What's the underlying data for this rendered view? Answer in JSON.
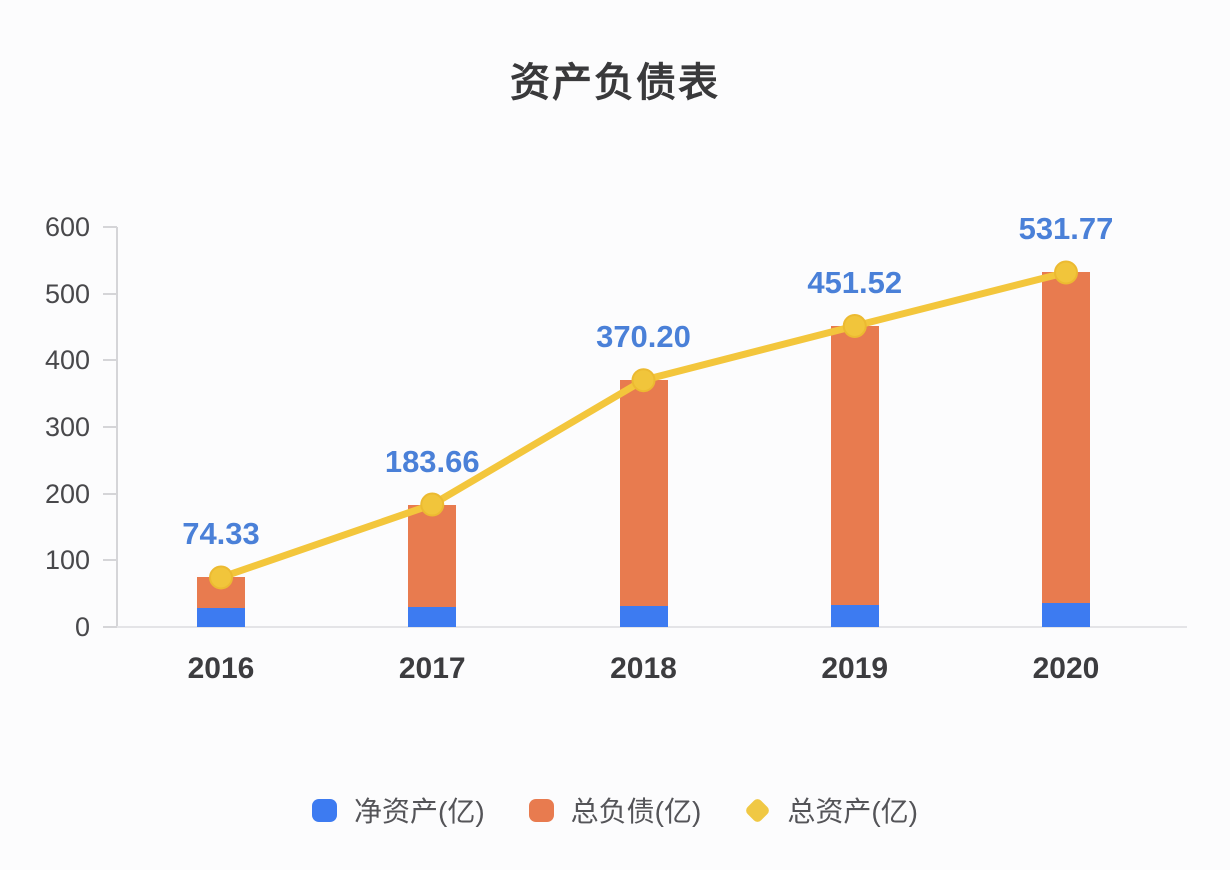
{
  "title": "资产负债表",
  "chart_data": {
    "type": "bar+line",
    "categories": [
      "2016",
      "2017",
      "2018",
      "2019",
      "2020"
    ],
    "series": [
      {
        "name": "净资产(亿)",
        "type": "bar",
        "stack": "total",
        "color": "#3d7bf1",
        "values": [
          29,
          30,
          32,
          33,
          36
        ]
      },
      {
        "name": "总负债(亿)",
        "type": "bar",
        "stack": "total",
        "color": "#e87b4f",
        "values": [
          45.33,
          153.66,
          338.2,
          418.52,
          495.77
        ]
      },
      {
        "name": "总资产(亿)",
        "type": "line",
        "color": "#f3c63c",
        "point_color": "#f1c53b",
        "values": [
          74.33,
          183.66,
          370.2,
          451.52,
          531.77
        ],
        "point_labels": [
          "74.33",
          "183.66",
          "370.20",
          "451.52",
          "531.77"
        ],
        "label_color": "#4a80d8"
      }
    ],
    "title": "资产负债表",
    "xlabel": "",
    "ylabel": "",
    "ylim": [
      0,
      600
    ],
    "yticks": [
      0,
      100,
      200,
      300,
      400,
      500,
      600
    ],
    "grid": false,
    "legend_position": "bottom"
  },
  "legend": {
    "items": [
      {
        "id": "net-assets",
        "label": "净资产(亿)",
        "color": "#3d7bf1",
        "shape": "rounded-square"
      },
      {
        "id": "liabilities",
        "label": "总负债(亿)",
        "color": "#e87b4f",
        "shape": "rounded-square"
      },
      {
        "id": "total-assets",
        "label": "总资产(亿)",
        "color": "#f0c844",
        "shape": "diamond"
      }
    ]
  },
  "colors": {
    "background": "#fcfcfd",
    "title_text": "#39393b",
    "axis_line": "#d5d5d8",
    "axis_text": "#48484b",
    "x_axis_text": "#3c3c3f",
    "value_label": "#4a80d8",
    "legend_text": "#545458"
  }
}
